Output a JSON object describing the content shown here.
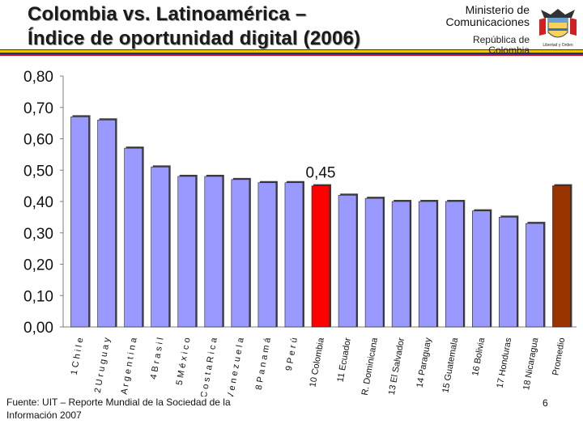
{
  "header": {
    "title_line1": "Colombia vs. Latinoamérica –",
    "title_line2": "Índice de oportunidad digital (2006)",
    "ministry_line1": "Ministerio de",
    "ministry_line2": "Comunicaciones",
    "republic_line1": "República de",
    "republic_line2": "Colombia",
    "crest_text": "Libertad y Orden"
  },
  "colors": {
    "bar": "#9999ff",
    "highlight": "#ff0000",
    "colombia_avg": "#993300",
    "stripe_yellow": "#f2c400",
    "stripe_blue": "#1c2f8c",
    "stripe_red": "#d0101a"
  },
  "chart_data": {
    "type": "bar",
    "title": "Índice de oportunidad digital (2006)",
    "xlabel": "",
    "ylabel": "",
    "ylim": [
      0,
      0.8
    ],
    "yticks": [
      "0,00",
      "0,10",
      "0,20",
      "0,30",
      "0,40",
      "0,50",
      "0,60",
      "0,70",
      "0,80"
    ],
    "values": [
      0.67,
      0.66,
      0.57,
      0.51,
      0.48,
      0.48,
      0.47,
      0.46,
      0.46,
      0.45,
      0.42,
      0.41,
      0.4,
      0.4,
      0.4,
      0.37,
      0.35,
      0.33,
      0.45
    ],
    "categories": [
      "1 C h i l e",
      "2 U r u g u a y",
      "3 A r g e n t i n a",
      "4 B r a s i l",
      "5 M é x i c o",
      "6 C o s t a R i c a",
      "7 V e n e z u e l a",
      "8 P a n a m á",
      "9 P e r ú",
      "10 Colombia",
      "11 Ecuador",
      "12 R. Dominicana",
      "13 El Salvador",
      "14 Paraguay",
      "15 Guatemala",
      "16 Bolivia",
      "17 Honduras",
      "18 Nicaragua",
      "Promedio"
    ],
    "highlight_index": 9,
    "colombia_avg_index": 18,
    "annotation": "0,45",
    "grid": false
  },
  "footer": {
    "source_line1": "Fuente: UIT – Reporte Mundial de la Sociedad de la",
    "source_line2": "Información 2007",
    "page_number": "6"
  }
}
